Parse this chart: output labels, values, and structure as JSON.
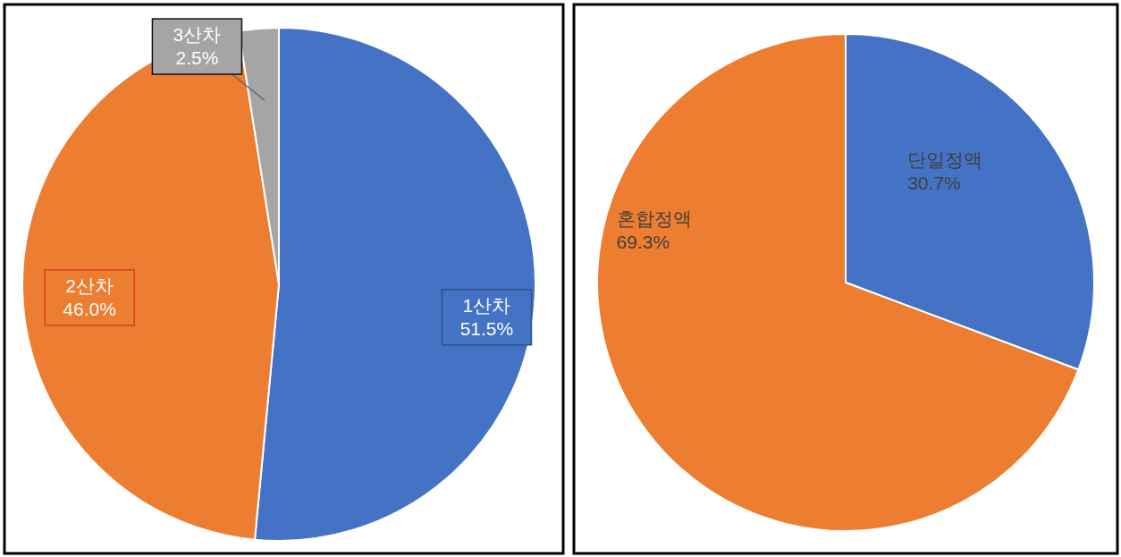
{
  "chart_data": [
    {
      "type": "pie",
      "categories": [
        "1산차",
        "2산차",
        "3산차"
      ],
      "values": [
        51.5,
        46.0,
        2.5
      ],
      "colors": [
        "#4472c4",
        "#ed7d31",
        "#a5a5a5"
      ],
      "value_labels": [
        "51.5%",
        "46.0%",
        "2.5%"
      ]
    },
    {
      "type": "pie",
      "categories": [
        "단일정액",
        "혼합정액"
      ],
      "values": [
        30.7,
        69.3
      ],
      "colors": [
        "#4472c4",
        "#ed7d31"
      ],
      "value_labels": [
        "30.7%",
        "69.3%"
      ]
    }
  ]
}
